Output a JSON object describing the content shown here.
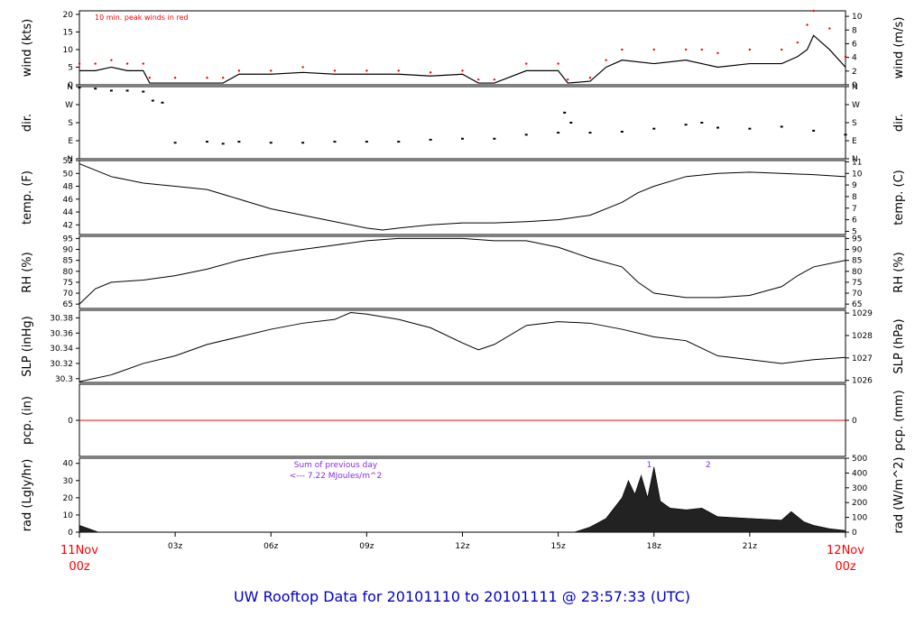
{
  "colors": {
    "background": "#ffffff",
    "line": "#000000",
    "peak_wind": "#ff0000",
    "precip_zero_line": "#ff0000",
    "date_labels": "#ff0000",
    "title": "#0000cc",
    "annotation": "#8a2be2"
  },
  "title": "UW Rooftop Data for 20101110  to  20101111 @ 23:57:33  (UTC)",
  "x_axis": {
    "start_label": [
      "11Nov",
      "00z"
    ],
    "end_label": [
      "12Nov",
      "00z"
    ],
    "tick_labels": [
      "03z",
      "06z",
      "09z",
      "12z",
      "15z",
      "18z",
      "21z"
    ],
    "xlim_hours": [
      0,
      24
    ]
  },
  "wind_note": "10 min. peak winds in red",
  "radiation_note": {
    "line1": "Sum of previous day",
    "line2": "<--- 7.22 MJoules/m^2",
    "markers": [
      "1",
      "2"
    ]
  },
  "chart_data": [
    {
      "type": "line",
      "name": "wind",
      "ylabel_left": "wind (kts)",
      "ylabel_right": "wind (m/s)",
      "left_ticks": [
        0,
        5,
        10,
        15,
        20
      ],
      "right_ticks": [
        0,
        2,
        4,
        6,
        8,
        10
      ],
      "ylim": [
        0,
        21
      ],
      "grid": false,
      "x": [
        0,
        0.5,
        1,
        1.5,
        2,
        2.2,
        3,
        4,
        4.5,
        5,
        6,
        7,
        8,
        9,
        10,
        11,
        12,
        12.5,
        13,
        14,
        15,
        15.3,
        16,
        16.5,
        17,
        18,
        19,
        19.5,
        20,
        21,
        22,
        22.5,
        22.8,
        23,
        23.5,
        24
      ],
      "series": [
        {
          "values": [
            4,
            4,
            5,
            4,
            4,
            0.5,
            0.5,
            0.5,
            0.5,
            3,
            3,
            3.5,
            3,
            3,
            3,
            2.5,
            3,
            0.5,
            0.5,
            4,
            4,
            0.5,
            1,
            5,
            7,
            6,
            7,
            6,
            5,
            6,
            6,
            8,
            10,
            14,
            10,
            5
          ]
        },
        {
          "name": "10 min. peak winds",
          "values": [
            6,
            6,
            7,
            6,
            6,
            2,
            2,
            2,
            2,
            4,
            4,
            5,
            4,
            4,
            4,
            3.5,
            4,
            1.5,
            1.5,
            6,
            6,
            1.5,
            2,
            7,
            10,
            10,
            10,
            10,
            9,
            10,
            10,
            12,
            17,
            21,
            16,
            8
          ]
        }
      ]
    },
    {
      "type": "scatter",
      "name": "dir",
      "ylabel_left": "dir.",
      "ylabel_right": "dir.",
      "left_ticks": [
        "N",
        "E",
        "S",
        "W",
        "N"
      ],
      "right_ticks": [
        "N",
        "E",
        "S",
        "W",
        "N"
      ],
      "tick_degrees": [
        0,
        90,
        180,
        270,
        360
      ],
      "ylim": [
        0,
        360
      ],
      "x": [
        0,
        0.5,
        1,
        1.5,
        2,
        2.3,
        2.6,
        3,
        4,
        4.5,
        5,
        6,
        7,
        8,
        9,
        10,
        11,
        12,
        13,
        14,
        15,
        15.2,
        15.4,
        16,
        17,
        18,
        19,
        19.5,
        20,
        21,
        22,
        23,
        24
      ],
      "values": [
        355,
        350,
        340,
        340,
        335,
        290,
        280,
        80,
        85,
        75,
        85,
        80,
        80,
        85,
        85,
        85,
        95,
        100,
        100,
        120,
        130,
        230,
        180,
        130,
        135,
        150,
        170,
        180,
        155,
        150,
        160,
        140,
        120
      ]
    },
    {
      "type": "line",
      "name": "temp",
      "ylabel_left": "temp. (F)",
      "ylabel_right": "temp. (C)",
      "left_ticks": [
        42,
        44,
        46,
        48,
        50,
        52
      ],
      "right_ticks": [
        5,
        6,
        7,
        8,
        9,
        10,
        11
      ],
      "ylim": [
        40.5,
        52
      ],
      "x": [
        0,
        0.5,
        1,
        1.5,
        2,
        3,
        4,
        5,
        6,
        7,
        8,
        9,
        9.5,
        10,
        11,
        12,
        13,
        14,
        15,
        16,
        17,
        17.5,
        18,
        19,
        20,
        21,
        22,
        23,
        24
      ],
      "values": [
        51.5,
        50.5,
        49.5,
        49,
        48.5,
        48,
        47.5,
        46,
        44.5,
        43.5,
        42.5,
        41.5,
        41.2,
        41.5,
        42,
        42.3,
        42.3,
        42.5,
        42.8,
        43.5,
        45.5,
        47,
        48,
        49.5,
        50,
        50.2,
        50,
        49.8,
        49.5
      ]
    },
    {
      "type": "line",
      "name": "rh",
      "ylabel_left": "RH (%)",
      "ylabel_right": "RH (%)",
      "left_ticks": [
        65,
        70,
        75,
        80,
        85,
        90,
        95
      ],
      "right_ticks": [
        65,
        70,
        75,
        80,
        85,
        90,
        95
      ],
      "ylim": [
        63,
        96
      ],
      "x": [
        0,
        0.5,
        1,
        2,
        3,
        4,
        5,
        6,
        7,
        8,
        9,
        10,
        11,
        12,
        13,
        14,
        15,
        16,
        17,
        17.5,
        18,
        19,
        20,
        21,
        22,
        22.5,
        23,
        24
      ],
      "values": [
        65,
        72,
        75,
        76,
        78,
        81,
        85,
        88,
        90,
        92,
        94,
        95,
        95,
        95,
        94,
        94,
        91,
        86,
        82,
        75,
        70,
        68,
        68,
        69,
        73,
        78,
        82,
        85
      ]
    },
    {
      "type": "line",
      "name": "slp",
      "ylabel_left": "SLP (inHg)",
      "ylabel_right": "SLP (hPa)",
      "left_ticks": [
        30.3,
        30.32,
        30.34,
        30.36,
        30.38
      ],
      "right_ticks": [
        1026,
        1027,
        1028,
        1029
      ],
      "ylim": [
        30.295,
        30.39
      ],
      "x": [
        0,
        1,
        2,
        3,
        4,
        5,
        6,
        7,
        8,
        8.5,
        9,
        10,
        11,
        12,
        12.5,
        13,
        14,
        15,
        16,
        17,
        18,
        19,
        20,
        21,
        22,
        23,
        24
      ],
      "values": [
        30.296,
        30.305,
        30.32,
        30.33,
        30.345,
        30.355,
        30.365,
        30.373,
        30.378,
        30.387,
        30.385,
        30.378,
        30.367,
        30.347,
        30.338,
        30.345,
        30.37,
        30.375,
        30.373,
        30.365,
        30.355,
        30.35,
        30.33,
        30.325,
        30.32,
        30.325,
        30.328
      ]
    },
    {
      "type": "line",
      "name": "pcp",
      "ylabel_left": "pcp. (in)",
      "ylabel_right": "pcp. (mm)",
      "left_ticks": [
        0
      ],
      "right_ticks": [
        0
      ],
      "ylim": [
        -1,
        1
      ],
      "x": [
        0,
        24
      ],
      "values": [
        0,
        0
      ]
    },
    {
      "type": "area",
      "name": "rad",
      "ylabel_left": "rad (Lgly/hr)",
      "ylabel_right": "rad (W/m^2)",
      "left_ticks": [
        0,
        10,
        20,
        30,
        40
      ],
      "right_ticks": [
        0,
        100,
        200,
        300,
        400,
        500
      ],
      "ylim": [
        0,
        43
      ],
      "x": [
        0,
        0.3,
        0.6,
        14.5,
        15.5,
        16,
        16.5,
        17,
        17.2,
        17.4,
        17.6,
        17.8,
        18,
        18.2,
        18.5,
        19,
        19.5,
        20,
        21,
        22,
        22.3,
        22.7,
        23,
        23.5,
        24
      ],
      "values": [
        4,
        2,
        0,
        0,
        0,
        3,
        8,
        20,
        30,
        22,
        33,
        20,
        38,
        18,
        14,
        13,
        14,
        9,
        8,
        7,
        12,
        6,
        4,
        2,
        1
      ]
    }
  ]
}
